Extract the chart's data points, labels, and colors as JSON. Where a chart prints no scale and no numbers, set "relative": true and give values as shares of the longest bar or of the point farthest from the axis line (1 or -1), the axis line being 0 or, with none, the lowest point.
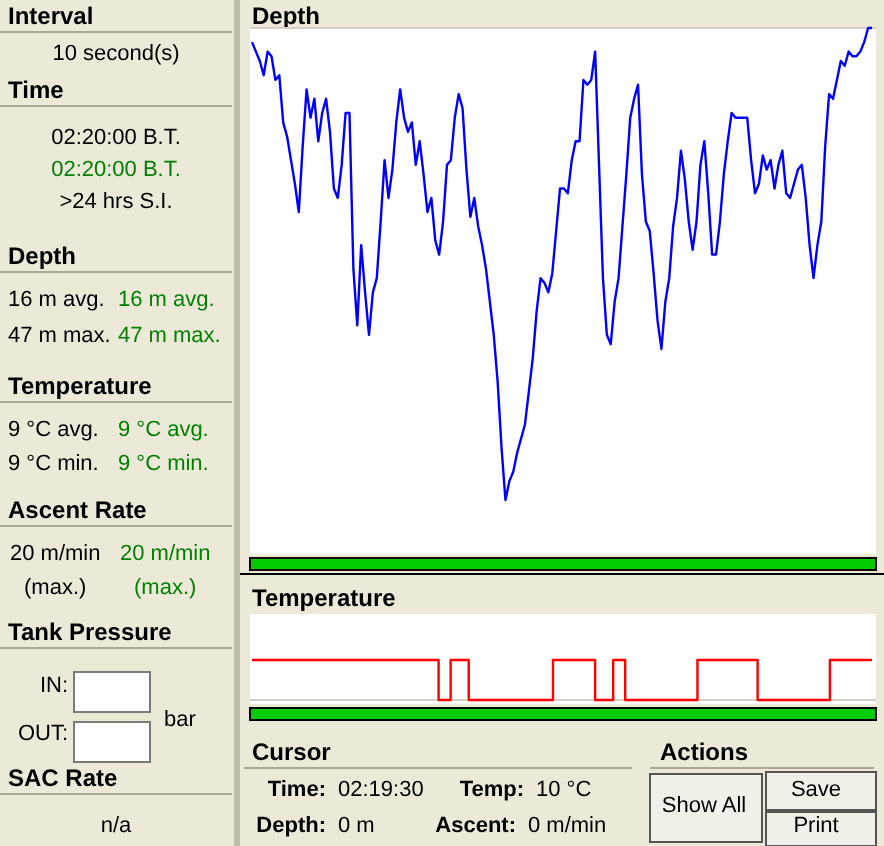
{
  "chart_data": [
    {
      "type": "line",
      "title": "Depth",
      "relative": true,
      "color": "#0000ff",
      "categories": [
        null,
        null,
        null,
        null,
        null,
        null,
        null,
        null,
        null,
        null,
        null,
        null,
        null,
        null,
        null,
        null,
        null,
        null,
        null,
        null,
        null,
        null,
        null,
        null,
        null,
        null,
        null,
        null,
        null,
        null,
        null,
        null,
        null,
        null,
        null,
        null,
        null,
        null,
        null,
        null,
        null,
        null,
        null,
        null,
        null,
        null,
        null,
        null,
        null,
        null,
        null,
        null,
        null,
        null,
        null,
        null,
        null,
        null,
        null,
        null,
        null,
        null,
        null,
        null,
        null,
        null,
        null,
        null,
        null,
        null,
        null,
        null,
        null,
        null,
        null,
        null,
        null,
        null,
        null,
        null,
        null,
        null,
        null,
        null,
        null,
        null,
        null,
        null,
        null,
        null,
        null,
        null,
        null,
        null,
        null,
        null,
        null,
        null,
        null,
        null,
        null,
        null,
        null,
        null,
        null,
        null,
        null,
        null,
        null,
        null,
        null,
        null,
        null,
        null,
        null,
        null,
        null,
        null,
        null,
        null,
        null,
        null,
        null,
        null,
        null,
        null,
        null,
        null,
        null,
        null,
        null,
        null,
        null,
        null,
        null,
        null,
        null,
        null,
        null,
        null,
        null,
        null,
        null,
        null,
        null,
        null,
        null,
        null,
        null,
        null,
        null,
        null,
        null,
        null,
        null,
        null,
        null,
        null,
        null,
        null
      ],
      "values": [
        -0.03,
        -0.05,
        -0.07,
        -0.1,
        -0.05,
        -0.06,
        -0.11,
        -0.1,
        -0.2,
        -0.23,
        -0.28,
        -0.33,
        -0.39,
        -0.25,
        -0.13,
        -0.19,
        -0.15,
        -0.24,
        -0.18,
        -0.15,
        -0.22,
        -0.34,
        -0.36,
        -0.29,
        -0.18,
        -0.18,
        -0.51,
        -0.63,
        -0.46,
        -0.56,
        -0.65,
        -0.56,
        -0.53,
        -0.41,
        -0.28,
        -0.36,
        -0.3,
        -0.2,
        -0.13,
        -0.19,
        -0.22,
        -0.2,
        -0.29,
        -0.24,
        -0.31,
        -0.39,
        -0.36,
        -0.45,
        -0.48,
        -0.41,
        -0.29,
        -0.28,
        -0.19,
        -0.14,
        -0.17,
        -0.3,
        -0.4,
        -0.36,
        -0.42,
        -0.46,
        -0.51,
        -0.58,
        -0.65,
        -0.75,
        -0.89,
        -1,
        -0.96,
        -0.94,
        -0.9,
        -0.87,
        -0.84,
        -0.77,
        -0.7,
        -0.6,
        -0.53,
        -0.54,
        -0.56,
        -0.52,
        -0.43,
        -0.34,
        -0.34,
        -0.35,
        -0.28,
        -0.24,
        -0.24,
        -0.11,
        -0.12,
        -0.11,
        -0.05,
        -0.29,
        -0.53,
        -0.65,
        -0.67,
        -0.58,
        -0.53,
        -0.42,
        -0.31,
        -0.19,
        -0.15,
        -0.12,
        -0.31,
        -0.41,
        -0.43,
        -0.52,
        -0.62,
        -0.68,
        -0.58,
        -0.53,
        -0.42,
        -0.36,
        -0.26,
        -0.32,
        -0.41,
        -0.47,
        -0.41,
        -0.29,
        -0.24,
        -0.35,
        -0.48,
        -0.48,
        -0.41,
        -0.31,
        -0.24,
        -0.18,
        -0.19,
        -0.19,
        -0.19,
        -0.19,
        -0.28,
        -0.35,
        -0.33,
        -0.27,
        -0.3,
        -0.28,
        -0.34,
        -0.29,
        -0.26,
        -0.35,
        -0.36,
        -0.33,
        -0.3,
        -0.29,
        -0.36,
        -0.46,
        -0.53,
        -0.46,
        -0.41,
        -0.25,
        -0.14,
        -0.15,
        -0.11,
        -0.07,
        -0.08,
        -0.05,
        -0.06,
        -0.06,
        -0.05,
        -0.03,
        0,
        0
      ]
    },
    {
      "type": "step",
      "title": "Temperature",
      "relative": true,
      "color": "#ff0000",
      "categories": [
        null,
        null,
        null,
        null,
        null,
        null,
        null,
        null,
        null,
        null,
        null,
        null,
        null,
        null,
        null,
        null,
        null,
        null,
        null,
        null,
        null,
        null,
        null,
        null,
        null,
        null,
        null,
        null,
        null,
        null,
        null,
        null,
        null,
        null,
        null,
        null,
        null,
        null,
        null,
        null,
        null,
        null,
        null,
        null,
        null,
        null,
        null,
        null,
        null,
        null,
        null,
        null,
        null,
        null,
        null,
        null,
        null,
        null,
        null,
        null,
        null,
        null,
        null,
        null,
        null,
        null,
        null,
        null,
        null,
        null,
        null,
        null,
        null,
        null,
        null,
        null,
        null,
        null,
        null,
        null,
        null,
        null,
        null,
        null,
        null,
        null,
        null,
        null,
        null,
        null,
        null,
        null,
        null,
        null,
        null,
        null,
        null,
        null,
        null,
        null,
        null,
        null,
        null,
        null
      ],
      "values": [
        1,
        1,
        1,
        1,
        1,
        1,
        1,
        1,
        1,
        1,
        1,
        1,
        1,
        1,
        1,
        1,
        1,
        1,
        1,
        1,
        1,
        1,
        1,
        1,
        1,
        1,
        1,
        1,
        1,
        1,
        1,
        0,
        0,
        1,
        1,
        1,
        0,
        0,
        0,
        0,
        0,
        0,
        0,
        0,
        0,
        0,
        0,
        0,
        0,
        0,
        1,
        1,
        1,
        1,
        1,
        1,
        1,
        0,
        0,
        0,
        1,
        1,
        0,
        0,
        0,
        0,
        0,
        0,
        0,
        0,
        0,
        0,
        0,
        0,
        1,
        1,
        1,
        1,
        1,
        1,
        1,
        1,
        1,
        1,
        0,
        0,
        0,
        0,
        0,
        0,
        0,
        0,
        0,
        0,
        0,
        0,
        1,
        1,
        1,
        1,
        1,
        1,
        1,
        1
      ]
    },
    {
      "type": "other",
      "annotations": [
        "Interval",
        "10 second(s)",
        "Time",
        "02:20:00 B.T.",
        "02:20:00 B.T.",
        ">24 hrs S.I.",
        "Depth",
        "16 m avg.",
        "16 m avg.",
        "47 m max.",
        "47 m max.",
        "Temperature",
        "9 °C avg.",
        "9 °C avg.",
        "9 °C min.",
        "9 °C min.",
        "Ascent Rate",
        "20 m/min",
        "20 m/min",
        "(max.)",
        "(max.)",
        "Tank Pressure",
        "IN:",
        "OUT:",
        "bar",
        "SAC Rate",
        "n/a",
        "Cursor",
        "Time:",
        "02:19:30",
        "Temp:",
        "10 °C",
        "Depth:",
        "0 m",
        "Ascent:",
        "0 m/min",
        "Actions",
        "Show All",
        "Save",
        "Print"
      ]
    }
  ]
}
